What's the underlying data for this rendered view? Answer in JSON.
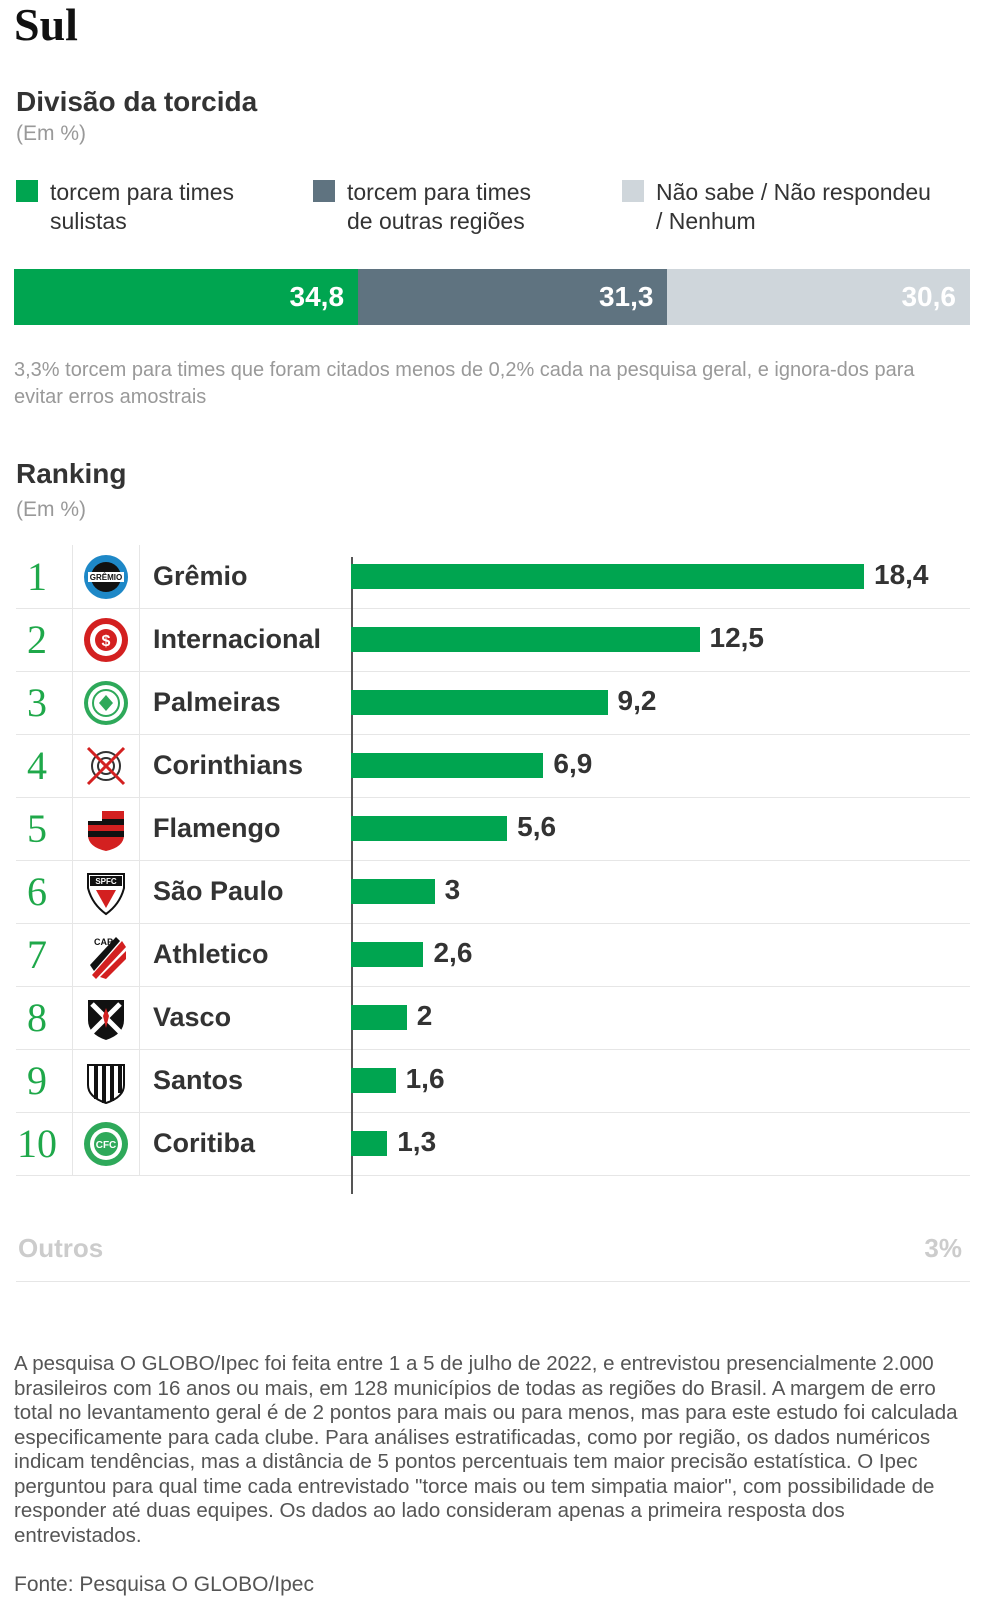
{
  "region_title": "Sul",
  "division": {
    "title": "Divisão da torcida",
    "unit": "(Em %)",
    "legend": [
      {
        "label": "torcem para times\nsulistas",
        "color": "#00a550"
      },
      {
        "label": "torcem para times\nde outras regiões",
        "color": "#5f7380"
      },
      {
        "label": "Não sabe / Não respondeu\n/ Nenhum",
        "color": "#cfd6db"
      }
    ],
    "note": "3,3% torcem para times que foram citados menos de 0,2% cada na pesquisa geral, e ignora-dos para evitar erros amostrais"
  },
  "ranking": {
    "title": "Ranking",
    "unit": "(Em %)",
    "teams": [
      {
        "rank": "1",
        "name": "Grêmio",
        "value_label": "18,4",
        "logo_icon": "gremio-crest-icon"
      },
      {
        "rank": "2",
        "name": "Internacional",
        "value_label": "12,5",
        "logo_icon": "internacional-crest-icon"
      },
      {
        "rank": "3",
        "name": "Palmeiras",
        "value_label": "9,2",
        "logo_icon": "palmeiras-crest-icon"
      },
      {
        "rank": "4",
        "name": "Corinthians",
        "value_label": "6,9",
        "logo_icon": "corinthians-crest-icon"
      },
      {
        "rank": "5",
        "name": "Flamengo",
        "value_label": "5,6",
        "logo_icon": "flamengo-crest-icon"
      },
      {
        "rank": "6",
        "name": "São Paulo",
        "value_label": "3",
        "logo_icon": "sao-paulo-crest-icon"
      },
      {
        "rank": "7",
        "name": "Athletico",
        "value_label": "2,6",
        "logo_icon": "athletico-crest-icon"
      },
      {
        "rank": "8",
        "name": "Vasco",
        "value_label": "2",
        "logo_icon": "vasco-crest-icon"
      },
      {
        "rank": "9",
        "name": "Santos",
        "value_label": "1,6",
        "logo_icon": "santos-crest-icon"
      },
      {
        "rank": "10",
        "name": "Coritiba",
        "value_label": "1,3",
        "logo_icon": "coritiba-crest-icon"
      }
    ],
    "others_label": "Outros",
    "others_value": "3%"
  },
  "methodology": "A pesquisa O GLOBO/Ipec foi feita entre 1 a 5 de julho de 2022, e entrevistou presencialmente 2.000 brasileiros com 16 anos ou mais, em 128 municípios de todas as regiões do Brasil. A margem de erro total no levantamento geral é de 2 pontos para mais ou para menos, mas para este estudo foi calculada especificamente para cada clube. Para análises estratificadas, como por região, os dados numéricos indicam tendências, mas a distância de 5 pontos percentuais tem maior precisão estatística. O Ipec perguntou para qual time cada entrevistado \"torce mais ou tem simpatia maior\", com possibilidade de responder até duas equipes. Os dados ao lado consideram apenas a primeira resposta dos entrevistados.",
  "source": "Fonte: Pesquisa O GLOBO/Ipec",
  "chart_data": [
    {
      "type": "bar",
      "title": "Divisão da torcida",
      "orientation": "horizontal-stacked",
      "categories": [
        "torcem para times sulistas",
        "torcem para times de outras regiões",
        "Não sabe / Não respondeu / Nenhum"
      ],
      "values": [
        34.8,
        31.3,
        30.6
      ],
      "labels": [
        "34,8",
        "31,3",
        "30,6"
      ],
      "colors": [
        "#00a550",
        "#5f7380",
        "#cfd6db"
      ]
    },
    {
      "type": "bar",
      "title": "Ranking",
      "orientation": "horizontal",
      "categories": [
        "Grêmio",
        "Internacional",
        "Palmeiras",
        "Corinthians",
        "Flamengo",
        "São Paulo",
        "Athletico",
        "Vasco",
        "Santos",
        "Coritiba"
      ],
      "values": [
        18.4,
        12.5,
        9.2,
        6.9,
        5.6,
        3,
        2.6,
        2,
        1.6,
        1.3
      ],
      "color": "#00a550"
    }
  ]
}
